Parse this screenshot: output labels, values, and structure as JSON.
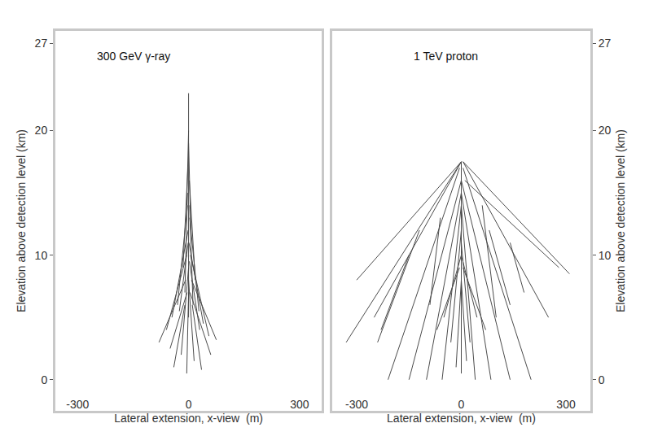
{
  "chart_data": [
    {
      "type": "line",
      "title": "300 GeV γ-ray",
      "x_label": "Lateral extension, x-view  (m)",
      "y_label": "Elevation above detection level (km)",
      "xlim": [
        -360,
        360
      ],
      "ylim": [
        -2.5,
        28
      ],
      "xticks": [
        -300,
        0,
        300
      ],
      "yticks": [
        0,
        10,
        20,
        27
      ],
      "grid": false,
      "series": [
        {
          "color": "#000000",
          "x": [
            0,
            0,
            null,
            0,
            -5,
            null,
            0,
            6,
            null,
            -2,
            -15,
            null,
            2,
            18,
            null,
            -3,
            -30,
            null,
            3,
            28,
            null,
            -1,
            -45,
            null,
            1,
            40,
            null,
            -5,
            -60,
            null,
            5,
            55,
            null,
            0,
            -20,
            null,
            0,
            15,
            null,
            -8,
            -80,
            null,
            8,
            75,
            null,
            0,
            -5,
            null,
            -10,
            -40,
            null,
            10,
            35,
            null,
            -3,
            -10,
            null,
            3,
            12,
            null,
            -1,
            -25,
            null,
            2,
            30,
            null,
            -4,
            -50,
            null,
            4,
            60
          ],
          "y": [
            23,
            5,
            null,
            20,
            14,
            null,
            19,
            12,
            null,
            17,
            9,
            null,
            16,
            8,
            null,
            14,
            6,
            null,
            13,
            5.5,
            null,
            12,
            5,
            null,
            11,
            4.5,
            null,
            10,
            4,
            null,
            10,
            3.5,
            null,
            9,
            2,
            null,
            8,
            1.5,
            null,
            8,
            3,
            null,
            8,
            3.2,
            null,
            7,
            0.5,
            null,
            6,
            1,
            null,
            6,
            0.8,
            null,
            15,
            7,
            null,
            14,
            6,
            null,
            11,
            5.5,
            null,
            9.5,
            4,
            null,
            7,
            2.5,
            null,
            7,
            2
          ]
        }
      ]
    },
    {
      "type": "line",
      "title": "1 TeV proton",
      "x_label": "Lateral extension, x-view  (m)",
      "y_label": "Elevation above detection level (km)",
      "xlim": [
        -370,
        370
      ],
      "ylim": [
        -2.5,
        28
      ],
      "xticks": [
        -300,
        0,
        300
      ],
      "yticks": [
        0,
        10,
        20,
        27
      ],
      "grid": false,
      "series": [
        {
          "color": "#000000",
          "x": [
            0,
            0,
            null,
            0,
            -330,
            null,
            0,
            -300,
            null,
            0,
            -250,
            null,
            -5,
            -210,
            null,
            0,
            -150,
            null,
            0,
            -100,
            null,
            0,
            -55,
            null,
            0,
            40,
            null,
            0,
            85,
            null,
            0,
            140,
            null,
            5,
            200,
            null,
            5,
            250,
            null,
            5,
            310,
            null,
            10,
            280,
            null,
            -150,
            -230,
            null,
            -120,
            -240,
            null,
            -60,
            -90,
            null,
            60,
            100,
            null,
            80,
            140,
            null,
            140,
            180,
            null,
            0,
            -30,
            null,
            0,
            25,
            null,
            0,
            -50,
            null,
            0,
            45,
            null,
            -5,
            -70,
            null,
            5,
            70,
            null,
            0,
            -15,
            null,
            0,
            15
          ],
          "y": [
            17.5,
            0.5,
            null,
            17.5,
            3,
            null,
            17.5,
            8,
            null,
            17.5,
            5,
            null,
            17,
            0,
            null,
            16,
            0,
            null,
            15,
            0,
            null,
            14,
            0,
            null,
            14,
            0,
            null,
            15,
            0,
            null,
            16,
            0,
            null,
            17,
            0,
            null,
            17.5,
            5,
            null,
            17.5,
            8.5,
            null,
            16,
            9,
            null,
            10,
            4,
            null,
            12,
            3,
            null,
            13,
            6,
            null,
            14,
            5,
            null,
            12,
            6,
            null,
            11,
            7,
            null,
            12,
            3,
            null,
            11,
            3,
            null,
            10,
            5,
            null,
            10,
            5,
            null,
            9,
            4,
            null,
            9,
            4,
            null,
            8,
            1,
            null,
            8,
            1.5
          ]
        }
      ]
    }
  ]
}
